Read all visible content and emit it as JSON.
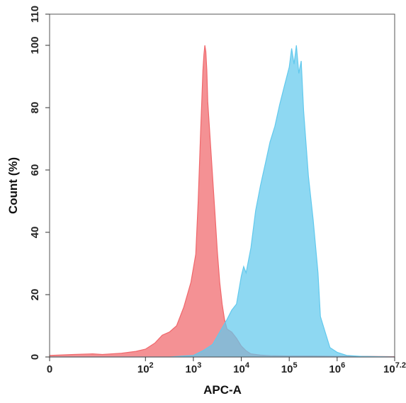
{
  "chart_data": {
    "type": "area",
    "title": "",
    "xlabel": "APC-A",
    "ylabel": "Count (%)",
    "x_scale": "log (biexponential)",
    "xlim": [
      0,
      7.2
    ],
    "ylim": [
      0,
      110
    ],
    "x_ticks": [
      {
        "value": 0,
        "label": "0",
        "exp": ""
      },
      {
        "value": 2,
        "label": "10",
        "exp": "2"
      },
      {
        "value": 3,
        "label": "10",
        "exp": "3"
      },
      {
        "value": 4,
        "label": "10",
        "exp": "4"
      },
      {
        "value": 5,
        "label": "10",
        "exp": "5"
      },
      {
        "value": 6,
        "label": "10",
        "exp": "6"
      },
      {
        "value": 7.2,
        "label": "10",
        "exp": "7.2"
      }
    ],
    "y_ticks": [
      0,
      20,
      40,
      60,
      80,
      100,
      110
    ],
    "series": [
      {
        "color": "#f0676b",
        "x": [
          0.0,
          0.5,
          0.9,
          1.1,
          1.5,
          1.8,
          2.0,
          2.2,
          2.35,
          2.5,
          2.65,
          2.8,
          2.95,
          3.05,
          3.1,
          3.15,
          3.18,
          3.2,
          3.22,
          3.24,
          3.26,
          3.28,
          3.3,
          3.35,
          3.4,
          3.45,
          3.5,
          3.55,
          3.6,
          3.65,
          3.7,
          3.75,
          3.8,
          3.9,
          4.0,
          4.1,
          4.2,
          4.4,
          4.6,
          5.0,
          5.5,
          6.0,
          6.5,
          7.2
        ],
        "y": [
          0.5,
          0.8,
          1.0,
          0.8,
          1.2,
          1.8,
          2.5,
          4.5,
          7.0,
          8.0,
          10.0,
          16.0,
          24.0,
          33.0,
          50.0,
          72.0,
          84.0,
          92.0,
          97.0,
          100.0,
          98.0,
          92.0,
          82.0,
          70.0,
          58.0,
          46.0,
          34.0,
          24.0,
          17.0,
          12.0,
          9.0,
          8.5,
          8.0,
          6.0,
          3.5,
          2.0,
          1.0,
          0.6,
          0.4,
          0.3,
          0.3,
          0.2,
          0.2,
          0.1
        ]
      },
      {
        "color": "#62c9ed",
        "x": [
          0.0,
          2.5,
          3.0,
          3.2,
          3.4,
          3.55,
          3.7,
          3.8,
          3.9,
          4.0,
          4.05,
          4.1,
          4.2,
          4.3,
          4.4,
          4.5,
          4.6,
          4.7,
          4.8,
          4.9,
          5.0,
          5.05,
          5.1,
          5.15,
          5.2,
          5.25,
          5.3,
          5.4,
          5.5,
          5.6,
          5.65,
          5.75,
          5.85,
          6.0,
          6.2,
          6.5,
          7.2
        ],
        "y": [
          0.0,
          0.0,
          0.5,
          2.0,
          4.0,
          8.0,
          12.0,
          15.0,
          17.0,
          26.0,
          29.0,
          27.0,
          35.0,
          47.0,
          55.0,
          62.0,
          69.0,
          74.0,
          81.0,
          87.0,
          93.0,
          99.0,
          94.0,
          100.0,
          91.0,
          95.0,
          79.0,
          58.0,
          44.0,
          27.0,
          13.0,
          8.0,
          3.0,
          1.5,
          0.5,
          0.2,
          0.0
        ]
      }
    ]
  }
}
